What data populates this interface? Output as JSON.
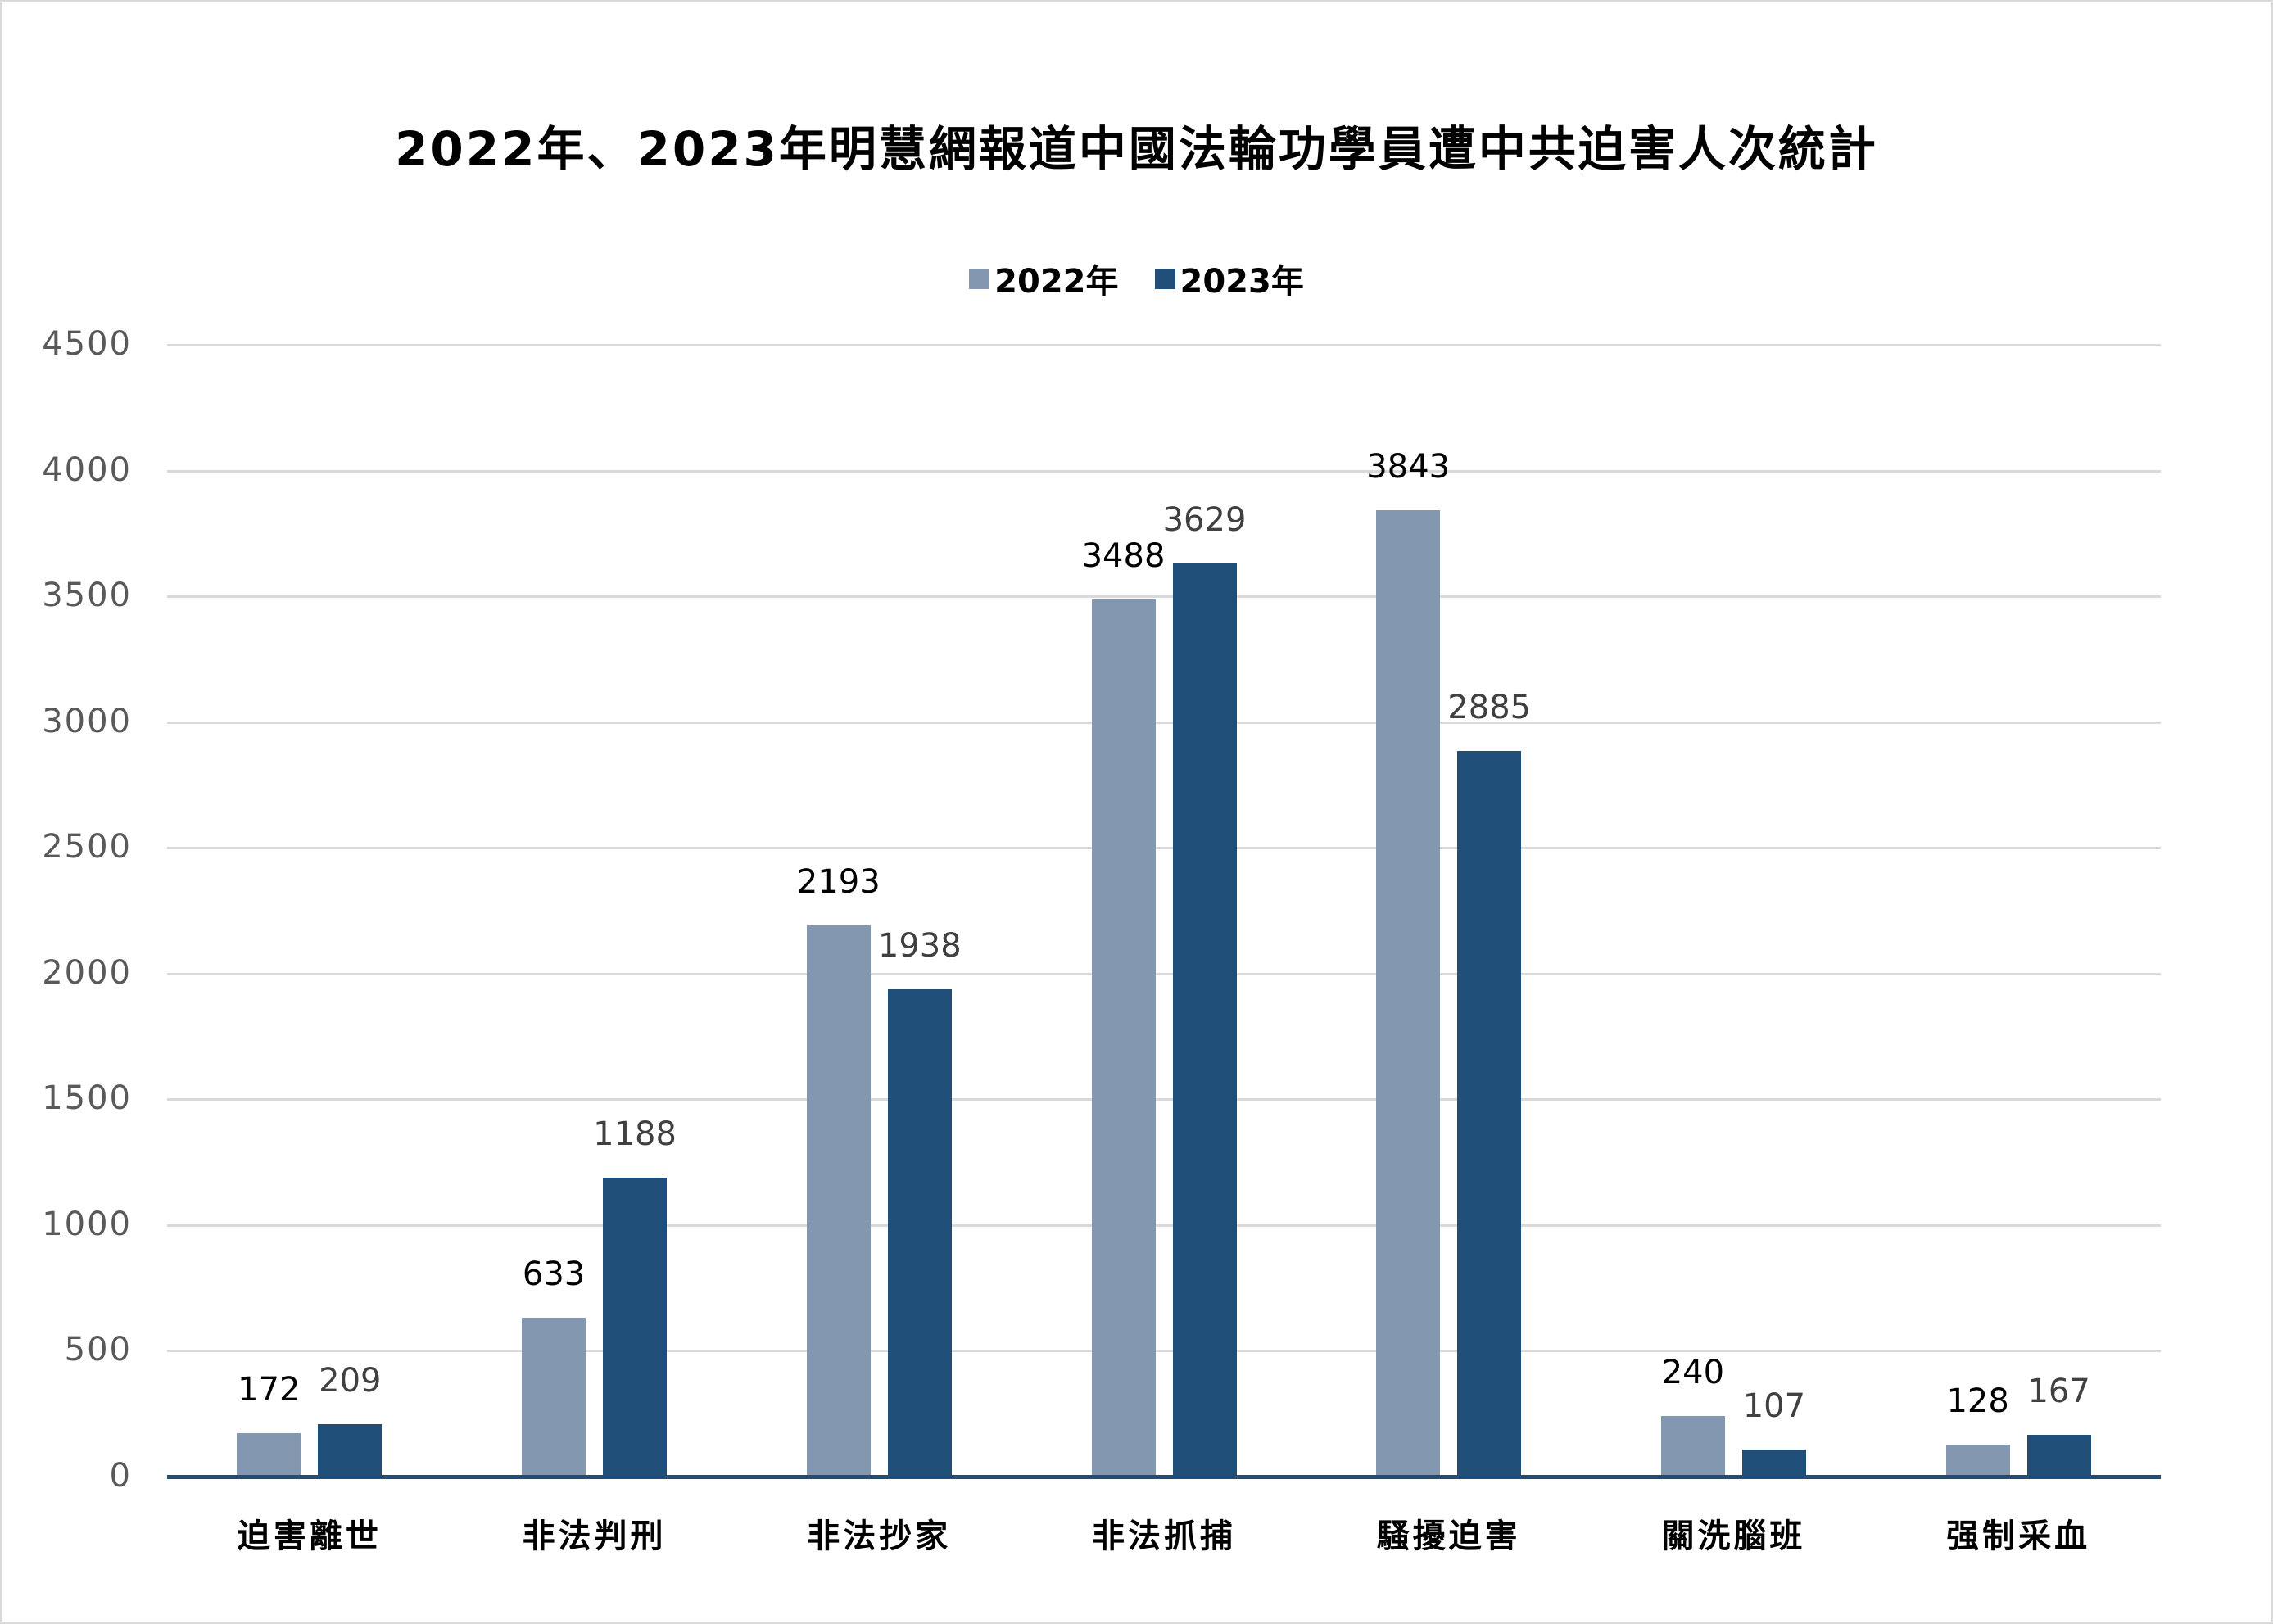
{
  "chart": {
    "title": "2022年、2023年明慧網報道中國法輪功學員遭中共迫害人次統計",
    "legend": [
      {
        "label": "2022年",
        "color": "#8497B0"
      },
      {
        "label": "2023年",
        "color": "#1F4E79"
      }
    ],
    "y_ticks": [
      "0",
      "500",
      "1000",
      "1500",
      "2000",
      "2500",
      "3000",
      "3500",
      "4000",
      "4500"
    ],
    "label_colors": {
      "series_2022": "#000000",
      "series_2023": "#404040"
    }
  },
  "chart_data": {
    "type": "bar",
    "title": "2022年、2023年明慧網報道中國法輪功學員遭中共迫害人次統計",
    "xlabel": "",
    "ylabel": "",
    "ylim": [
      0,
      4500
    ],
    "y_tick_step": 500,
    "grid": true,
    "legend_position": "top",
    "categories": [
      "迫害離世",
      "非法判刑",
      "非法抄家",
      "非法抓捕",
      "騷擾迫害",
      "關洗腦班",
      "强制采血"
    ],
    "series": [
      {
        "name": "2022年",
        "color": "#8497B0",
        "values": [
          172,
          633,
          2193,
          3488,
          3843,
          240,
          128
        ]
      },
      {
        "name": "2023年",
        "color": "#1F4E79",
        "values": [
          209,
          1188,
          1938,
          3629,
          2885,
          107,
          167
        ]
      }
    ]
  }
}
